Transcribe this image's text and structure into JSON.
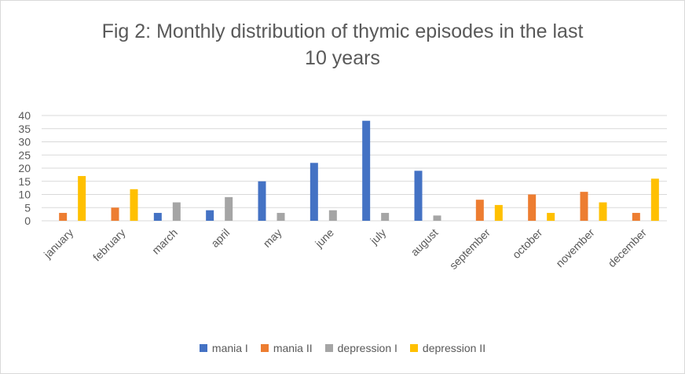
{
  "chart_data": {
    "type": "bar",
    "title": "Fig 2: Monthly distribution of thymic episodes in the last 10 years",
    "title_lines": [
      "Fig 2: Monthly distribution of thymic episodes in the last",
      "10 years"
    ],
    "categories": [
      "january",
      "february",
      "march",
      "april",
      "may",
      "june",
      "july",
      "august",
      "september",
      "october",
      "november",
      "december"
    ],
    "series": [
      {
        "name": "mania I",
        "color": "#4472C4",
        "values": [
          0,
          0,
          3,
          4,
          15,
          22,
          38,
          19,
          0,
          0,
          0,
          0
        ]
      },
      {
        "name": "mania II",
        "color": "#ED7D31",
        "values": [
          3,
          5,
          0,
          0,
          0,
          0,
          0,
          0,
          8,
          10,
          11,
          3
        ]
      },
      {
        "name": "depression I",
        "color": "#A5A5A5",
        "values": [
          0,
          0,
          7,
          9,
          3,
          4,
          3,
          2,
          0,
          0,
          0,
          0
        ]
      },
      {
        "name": "depression II",
        "color": "#FFC000",
        "values": [
          17,
          12,
          0,
          0,
          0,
          0,
          0,
          0,
          6,
          3,
          7,
          16
        ]
      }
    ],
    "yticks": [
      0,
      5,
      10,
      15,
      20,
      25,
      30,
      35,
      40
    ],
    "ylim": [
      0,
      40
    ],
    "xlabel": "",
    "ylabel": "",
    "grid": true,
    "legend_position": "bottom"
  }
}
